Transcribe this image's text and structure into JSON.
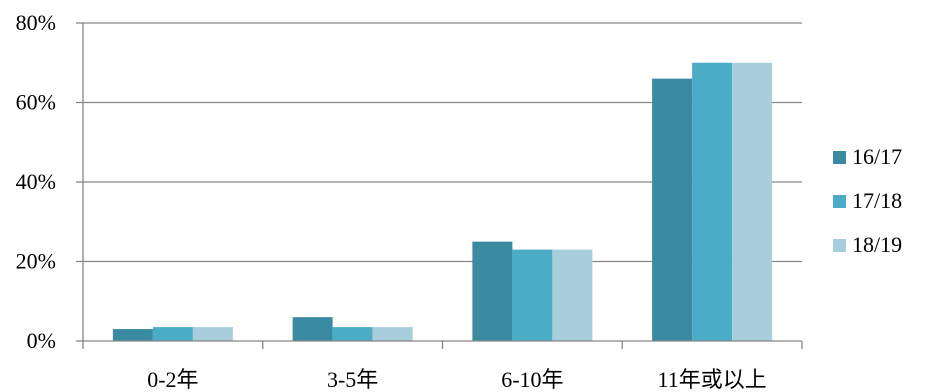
{
  "chart_data": {
    "type": "bar",
    "categories": [
      "0-2年",
      "3-5年",
      "6-10年",
      "11年或以上"
    ],
    "series": [
      {
        "name": "16/17",
        "values": [
          3,
          6,
          25,
          66
        ],
        "color": "#3A8BA2"
      },
      {
        "name": "17/18",
        "values": [
          3.5,
          3.5,
          23,
          70
        ],
        "color": "#4BACC6"
      },
      {
        "name": "18/19",
        "values": [
          3.5,
          3.5,
          23,
          70
        ],
        "color": "#A8CEDD"
      }
    ],
    "yticks": [
      "0%",
      "20%",
      "40%",
      "60%",
      "80%"
    ],
    "ylim": [
      0,
      80
    ],
    "grid": true,
    "legend": "right",
    "colors": {
      "grid": "#868686",
      "axis": "#868686"
    }
  }
}
